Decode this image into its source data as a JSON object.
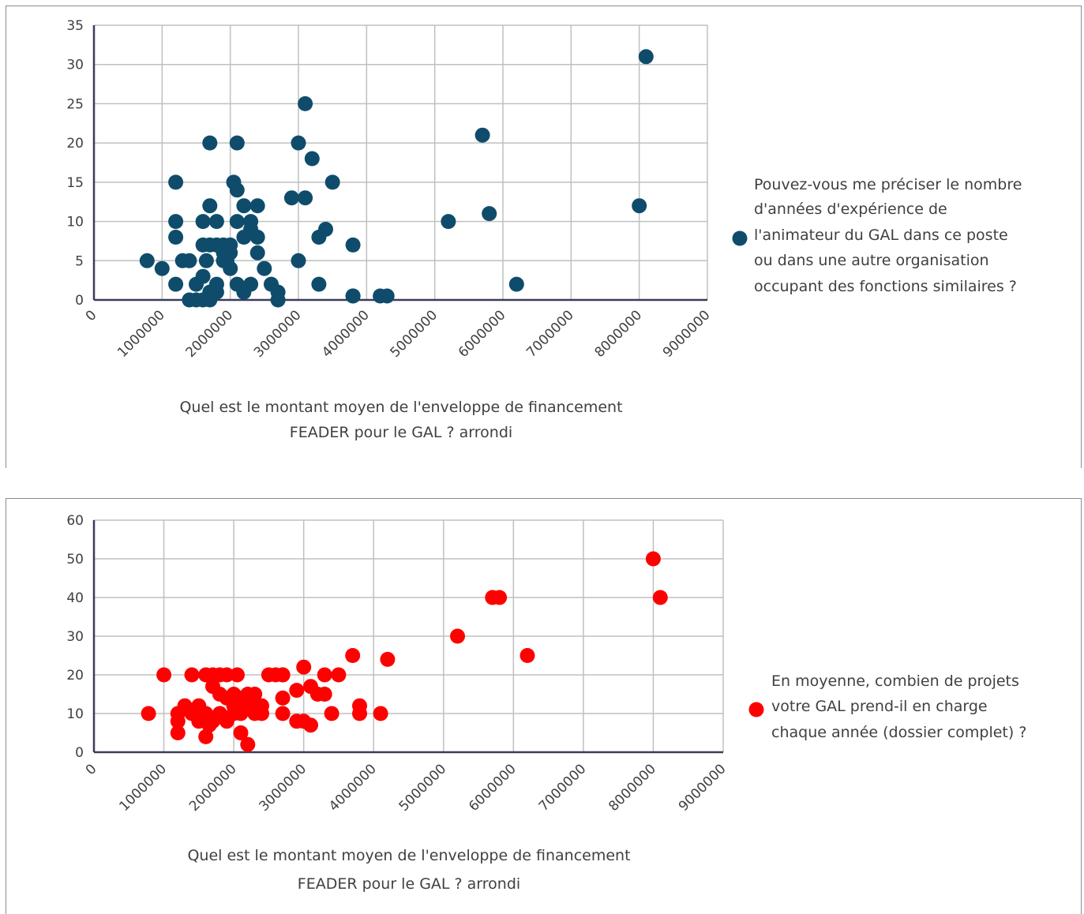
{
  "chart_data": [
    {
      "type": "scatter",
      "title": "",
      "xlabel": [
        "Quel est le montant moyen de l'enveloppe de financement",
        "FEADER pour le GAL ? arrondi"
      ],
      "ylabel": "",
      "xlim": [
        0,
        9000000
      ],
      "ylim": [
        0,
        35
      ],
      "xticks": [
        "0",
        "1000000",
        "2000000",
        "3000000",
        "4000000",
        "5000000",
        "6000000",
        "7000000",
        "8000000",
        "9000000"
      ],
      "yticks": [
        "0",
        "5",
        "10",
        "15",
        "20",
        "25",
        "30",
        "35"
      ],
      "grid": true,
      "legend_position": "right",
      "series": [
        {
          "name": [
            "Pouvez-vous me préciser le nombre",
            "d'années d'expérience de",
            "l'animateur du GAL dans ce poste",
            "ou dans une autre organisation",
            "occupant des fonctions similaires ?"
          ],
          "color": "#0f4c6b",
          "x": [
            780000,
            1000000,
            1200000,
            1200000,
            1200000,
            1200000,
            1300000,
            1400000,
            1400000,
            1500000,
            1500000,
            1600000,
            1600000,
            1600000,
            1600000,
            1650000,
            1700000,
            1700000,
            1700000,
            1700000,
            1700000,
            1800000,
            1800000,
            1800000,
            1800000,
            1900000,
            1900000,
            1900000,
            1950000,
            2000000,
            2000000,
            2000000,
            2050000,
            2100000,
            2100000,
            2100000,
            2100000,
            2200000,
            2200000,
            2200000,
            2300000,
            2300000,
            2300000,
            2400000,
            2400000,
            2400000,
            2500000,
            2600000,
            2700000,
            2700000,
            2900000,
            3000000,
            3000000,
            3100000,
            3100000,
            3200000,
            3300000,
            3300000,
            3400000,
            3500000,
            3800000,
            3800000,
            3800000,
            4200000,
            4300000,
            5200000,
            5700000,
            5800000,
            6200000,
            8000000,
            8100000
          ],
          "y": [
            5,
            4,
            15,
            10,
            8,
            2,
            5,
            0,
            5,
            2,
            0,
            10,
            7,
            3,
            0,
            5,
            20,
            12,
            7,
            1,
            0,
            10,
            7,
            2,
            1,
            7,
            6,
            5,
            5,
            7,
            6,
            4,
            15,
            14,
            10,
            2,
            20,
            12,
            8,
            1,
            10,
            9,
            2,
            12,
            8,
            6,
            4,
            2,
            0,
            1,
            13,
            20,
            5,
            13,
            25,
            18,
            2,
            8,
            9,
            15,
            7,
            0.5,
            0.5,
            0.5,
            0.5,
            10,
            21,
            11,
            2,
            12,
            31
          ]
        }
      ]
    },
    {
      "type": "scatter",
      "title": "",
      "xlabel": [
        "Quel est le montant moyen de l'enveloppe de financement",
        "FEADER pour le GAL ? arrondi"
      ],
      "ylabel": "",
      "xlim": [
        0,
        9000000
      ],
      "ylim": [
        0,
        60
      ],
      "xticks": [
        "0",
        "1000000",
        "2000000",
        "3000000",
        "4000000",
        "5000000",
        "6000000",
        "7000000",
        "8000000",
        "9000000"
      ],
      "yticks": [
        "0",
        "10",
        "20",
        "30",
        "40",
        "50",
        "60"
      ],
      "grid": true,
      "legend_position": "right",
      "series": [
        {
          "name": [
            "En moyenne, combien de projets",
            "votre GAL prend-il en charge",
            "chaque année (dossier complet) ?"
          ],
          "color": "#ff0000",
          "x": [
            780000,
            1000000,
            1200000,
            1200000,
            1200000,
            1300000,
            1400000,
            1400000,
            1500000,
            1500000,
            1600000,
            1600000,
            1600000,
            1650000,
            1700000,
            1700000,
            1700000,
            1800000,
            1800000,
            1800000,
            1900000,
            1900000,
            1900000,
            2000000,
            2000000,
            2000000,
            2050000,
            2100000,
            2100000,
            2100000,
            2200000,
            2200000,
            2200000,
            2300000,
            2300000,
            2300000,
            2400000,
            2400000,
            2500000,
            2600000,
            2700000,
            2700000,
            2700000,
            2700000,
            2900000,
            2900000,
            3000000,
            3000000,
            3100000,
            3100000,
            3200000,
            3300000,
            3300000,
            3400000,
            3500000,
            3700000,
            3800000,
            3800000,
            4100000,
            4200000,
            5200000,
            5700000,
            5800000,
            6200000,
            8000000,
            8100000
          ],
          "y": [
            10,
            20,
            10,
            8,
            5,
            12,
            20,
            10,
            12,
            8,
            20,
            10,
            4,
            7,
            20,
            17,
            8,
            20,
            15,
            10,
            20,
            14,
            8,
            15,
            12,
            10,
            20,
            14,
            5,
            10,
            15,
            12,
            2,
            15,
            12,
            10,
            10,
            12,
            20,
            20,
            20,
            20,
            14,
            10,
            16,
            8,
            22,
            8,
            17,
            7,
            15,
            20,
            15,
            10,
            20,
            25,
            12,
            10,
            10,
            24,
            30,
            40,
            40,
            25,
            50,
            40
          ]
        }
      ]
    }
  ]
}
